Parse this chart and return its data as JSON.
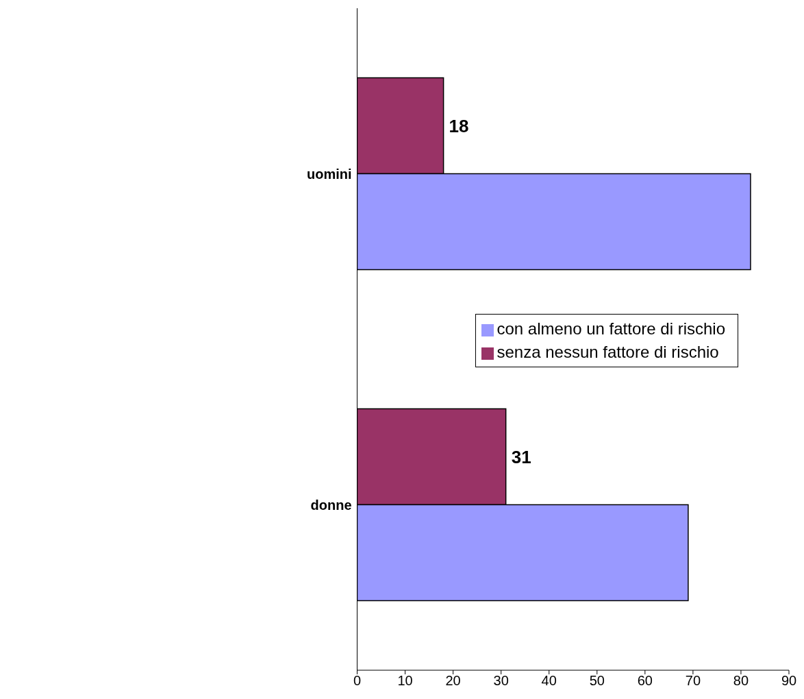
{
  "chart_data": {
    "type": "bar",
    "orientation": "horizontal",
    "categories": [
      "uomini",
      "donne"
    ],
    "series": [
      {
        "name": "senza nessun fattore di rischio",
        "color": "#993366",
        "values": [
          18,
          31
        ],
        "value_labels": [
          "18",
          "31"
        ]
      },
      {
        "name": "con almeno un fattore di rischio",
        "color": "#9999ff",
        "values": [
          82,
          69
        ]
      }
    ],
    "xlim": [
      0,
      90
    ],
    "xticks": [
      0,
      10,
      20,
      30,
      40,
      50,
      60,
      70,
      80,
      90
    ],
    "grid": false,
    "legend": "right"
  }
}
